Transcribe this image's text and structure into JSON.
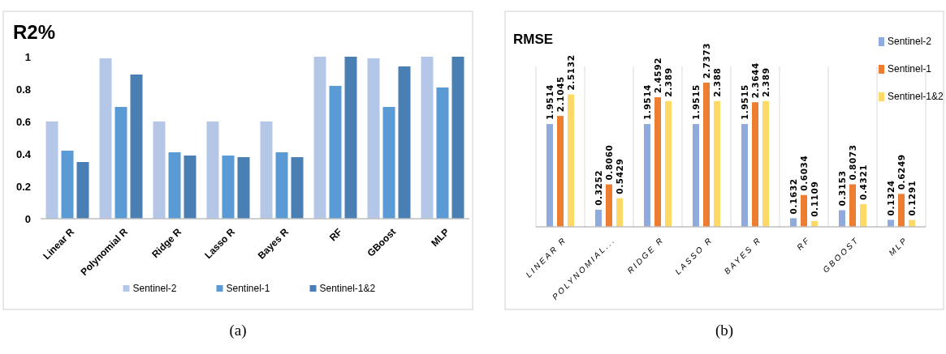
{
  "chart_data": [
    {
      "type": "bar",
      "title": "R2%",
      "categories": [
        "Linear R",
        "Polynomial R",
        "Ridge R",
        "Lasso R",
        "Bayes R",
        "RF",
        "GBoost",
        "MLP"
      ],
      "series": [
        {
          "name": "Sentinel-2",
          "color": "#b4c7e7",
          "values": [
            0.6,
            0.99,
            0.6,
            0.6,
            0.6,
            1.0,
            0.99,
            1.0
          ]
        },
        {
          "name": "Sentinel-1",
          "color": "#5b9bd5",
          "values": [
            0.42,
            0.69,
            0.41,
            0.39,
            0.41,
            0.82,
            0.69,
            0.81
          ]
        },
        {
          "name": "Sentinel-1&2",
          "color": "#4a7fb3",
          "values": [
            0.35,
            0.89,
            0.39,
            0.38,
            0.38,
            1.0,
            0.94,
            1.0
          ]
        }
      ],
      "ylim": [
        0,
        1
      ],
      "yticks": [
        0,
        0.2,
        0.4,
        0.6,
        0.8,
        1
      ],
      "grid": false,
      "legend": "bottom",
      "annotations": [
        "(a)"
      ]
    },
    {
      "type": "bar",
      "title": "RMSE",
      "categories": [
        "LINEAR R",
        "POLYNOMIAL...",
        "RIDGE R",
        "LASSO R",
        "BAYES R",
        "RF",
        "GBOOST",
        "MLP"
      ],
      "series": [
        {
          "name": "Sentinel-2",
          "color": "#8faadc",
          "values": [
            1.9514,
            0.3252,
            1.9514,
            1.9515,
            1.9515,
            0.1632,
            0.3153,
            0.1324
          ],
          "value_labels": [
            "1.9514",
            "0.3252",
            "1.9514",
            "1.9515",
            "1.9515",
            "0.1632",
            "0.3153",
            "0.1324"
          ]
        },
        {
          "name": "Sentinel-1",
          "color": "#ed7d31",
          "values": [
            2.1045,
            0.806,
            2.4592,
            2.7373,
            2.3644,
            0.6034,
            0.8073,
            0.6249
          ],
          "value_labels": [
            "2.1045",
            "0.8060",
            "2.4592",
            "2.7373",
            "2.3644",
            "0.6034",
            "0.8073",
            "0.6249"
          ]
        },
        {
          "name": "Sentinel-1&2",
          "color": "#ffd966",
          "values": [
            2.5132,
            0.5429,
            2.389,
            2.388,
            2.389,
            0.1109,
            0.4321,
            0.1291
          ],
          "value_labels": [
            "2.5132",
            "0.5429",
            "2.389",
            "2.388",
            "2.389",
            "0.1109",
            "0.4321",
            "0.1291"
          ]
        }
      ],
      "grid": "x",
      "legend": "right",
      "annotations": [
        "(b)"
      ]
    }
  ]
}
